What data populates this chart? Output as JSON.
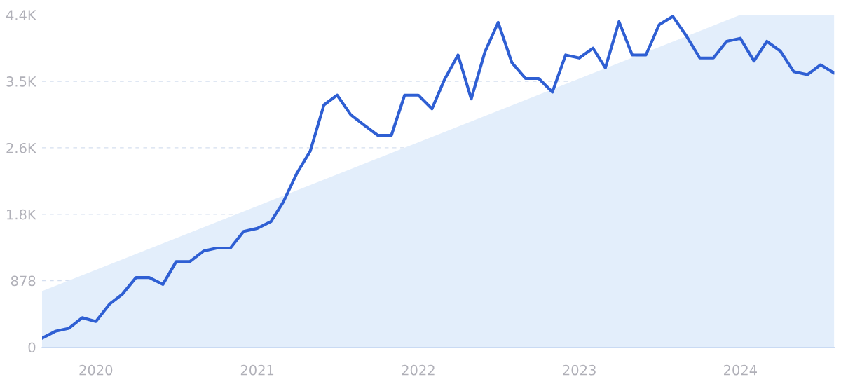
{
  "chart_data": {
    "type": "line",
    "x": [
      "2019-09",
      "2019-10",
      "2019-11",
      "2019-12",
      "2020-01",
      "2020-02",
      "2020-03",
      "2020-04",
      "2020-05",
      "2020-06",
      "2020-07",
      "2020-08",
      "2020-09",
      "2020-10",
      "2020-11",
      "2020-12",
      "2021-01",
      "2021-02",
      "2021-03",
      "2021-04",
      "2021-05",
      "2021-06",
      "2021-07",
      "2021-08",
      "2021-09",
      "2021-10",
      "2021-11",
      "2021-12",
      "2022-01",
      "2022-02",
      "2022-03",
      "2022-04",
      "2022-05",
      "2022-06",
      "2022-07",
      "2022-08",
      "2022-09",
      "2022-10",
      "2022-11",
      "2022-12",
      "2023-01",
      "2023-02",
      "2023-03",
      "2023-04",
      "2023-05",
      "2023-06",
      "2023-07",
      "2023-08",
      "2023-09",
      "2023-10",
      "2023-11",
      "2023-12",
      "2024-01",
      "2024-02",
      "2024-03",
      "2024-04",
      "2024-05",
      "2024-06",
      "2024-07",
      "2024-08"
    ],
    "series": [
      {
        "type": "area",
        "color": "#e3eefb",
        "x": [
          "2019-09",
          "2024-01",
          "2024-08"
        ],
        "values": [
          740,
          4390,
          4390
        ]
      },
      {
        "color": "#2f5fd3",
        "values": [
          120,
          210,
          250,
          390,
          340,
          570,
          700,
          920,
          920,
          830,
          1130,
          1130,
          1270,
          1310,
          1310,
          1530,
          1570,
          1660,
          1920,
          2300,
          2590,
          3200,
          3330,
          3070,
          2930,
          2800,
          2800,
          3330,
          3330,
          3150,
          3530,
          3860,
          3280,
          3900,
          4290,
          3760,
          3550,
          3550,
          3370,
          3860,
          3820,
          3950,
          3690,
          4300,
          3860,
          3860,
          4260,
          4370,
          4110,
          3820,
          3820,
          4040,
          4080,
          3780,
          4040,
          3910,
          3640,
          3600,
          3730,
          3620
        ]
      }
    ],
    "xlim": [
      "2019-09",
      "2024-08"
    ],
    "xticks": [
      {
        "value": "2020-01",
        "label": "2020"
      },
      {
        "value": "2021-01",
        "label": "2021"
      },
      {
        "value": "2022-01",
        "label": "2022"
      },
      {
        "value": "2023-01",
        "label": "2023"
      },
      {
        "value": "2024-01",
        "label": "2024"
      }
    ],
    "ylim": [
      0,
      4390
    ],
    "yticks": [
      0,
      878,
      {
        "value": 1756,
        "label": "1.8K"
      },
      {
        "value": 2634,
        "label": "2.6K"
      },
      {
        "value": 3512,
        "label": "3.5K"
      },
      {
        "value": 4390,
        "label": "4.4K"
      }
    ],
    "grid": "y",
    "line_style": "solid",
    "marker": "none"
  }
}
